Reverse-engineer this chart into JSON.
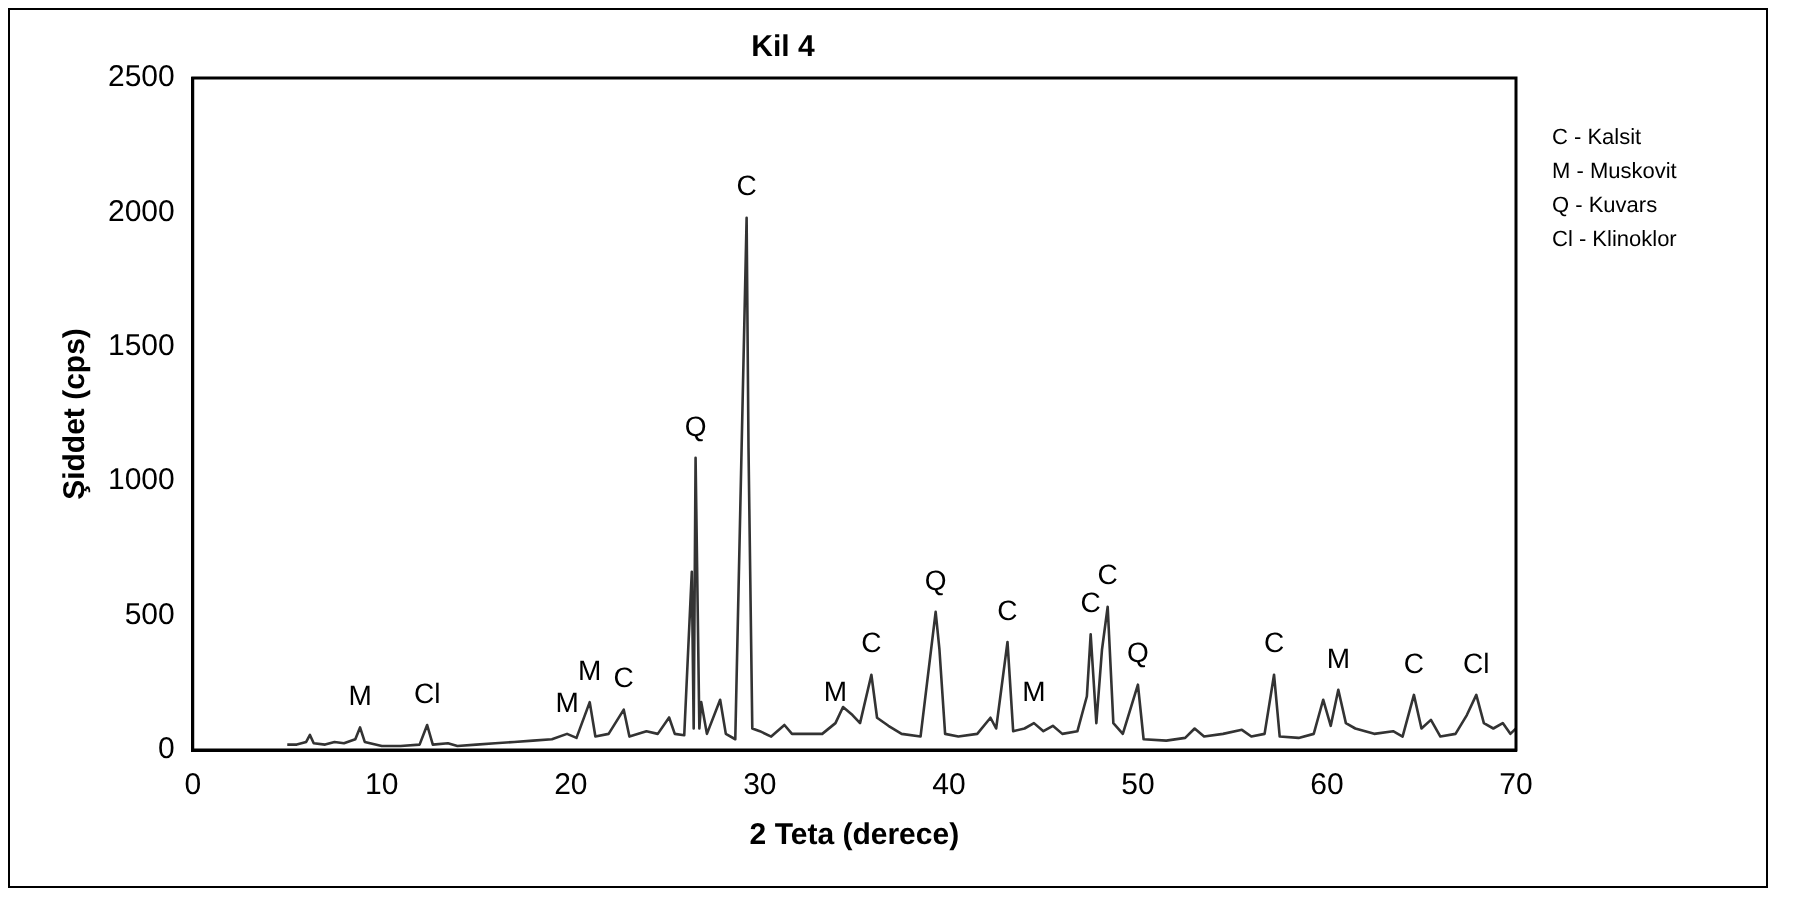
{
  "chart_data": {
    "type": "line",
    "title": "Kil 4",
    "xlabel": "2 Teta (derece)",
    "ylabel": "Şiddet (cps)",
    "xlim": [
      0,
      70
    ],
    "xticks": [
      0,
      10,
      20,
      30,
      40,
      50,
      60,
      70
    ],
    "ylim": [
      0,
      2500
    ],
    "yticks": [
      0,
      500,
      1000,
      1500,
      2000,
      2500
    ],
    "grid": false,
    "legend": false,
    "series": [
      {
        "color": "#333333",
        "x": [
          5,
          5.5,
          6,
          6.2,
          6.4,
          7,
          7.5,
          8,
          8.6,
          8.85,
          9.1,
          10,
          11,
          12,
          12.4,
          12.7,
          13.5,
          14,
          15,
          16,
          17,
          18,
          19,
          19.8,
          20.3,
          21,
          21.3,
          22,
          22.8,
          23.1,
          24,
          24.6,
          25.2,
          25.5,
          26,
          26.4,
          26.5,
          26.6,
          26.8,
          26.9,
          27.2,
          27.9,
          28.2,
          28.7,
          29.3,
          29.4,
          29.6,
          30,
          30.6,
          31.3,
          31.7,
          32.5,
          33.3,
          34,
          34.4,
          34.9,
          35.3,
          35.9,
          36.2,
          36.8,
          37.5,
          38.5,
          39.3,
          39.5,
          39.8,
          40.5,
          41.5,
          42.2,
          42.5,
          43.1,
          43.4,
          44,
          44.5,
          45,
          45.5,
          46,
          46.8,
          47.3,
          47.5,
          47.8,
          48.1,
          48.4,
          48.7,
          49.2,
          50,
          50.3,
          51.5,
          52.5,
          53,
          53.5,
          54.5,
          55.5,
          56,
          56.7,
          57.2,
          57.5,
          58.5,
          59.3,
          59.8,
          60.2,
          60.6,
          61,
          61.5,
          62.5,
          63.5,
          64,
          64.6,
          65,
          65.5,
          66,
          66.8,
          67.4,
          67.9,
          68.3,
          68.8,
          69.3,
          69.7,
          70
        ],
        "values": [
          20,
          20,
          30,
          56,
          25,
          20,
          30,
          25,
          40,
          84,
          30,
          15,
          15,
          20,
          93,
          20,
          25,
          15,
          20,
          25,
          30,
          35,
          40,
          60,
          45,
          178,
          50,
          60,
          150,
          50,
          70,
          60,
          121,
          60,
          55,
          663,
          80,
          1087,
          80,
          178,
          60,
          187,
          60,
          40,
          1980,
          1124,
          80,
          70,
          50,
          93,
          60,
          60,
          60,
          100,
          160,
          130,
          100,
          280,
          120,
          90,
          60,
          50,
          514,
          374,
          60,
          50,
          60,
          120,
          80,
          402,
          70,
          80,
          100,
          70,
          90,
          60,
          70,
          200,
          430,
          100,
          374,
          533,
          100,
          60,
          243,
          40,
          35,
          45,
          80,
          50,
          60,
          75,
          50,
          60,
          280,
          50,
          45,
          60,
          187,
          90,
          224,
          100,
          80,
          60,
          70,
          50,
          205,
          80,
          112,
          50,
          60,
          130,
          205,
          100,
          80,
          100,
          60,
          80
        ]
      }
    ],
    "annotations": [
      {
        "text": "M",
        "x": 8.85,
        "y": 84
      },
      {
        "text": "Cl",
        "x": 12.4,
        "y": 93
      },
      {
        "text": "M",
        "x": 19.8,
        "y": 60
      },
      {
        "text": "M",
        "x": 21,
        "y": 178
      },
      {
        "text": "C",
        "x": 22.8,
        "y": 150
      },
      {
        "text": "Q",
        "x": 26.6,
        "y": 1087
      },
      {
        "text": "C",
        "x": 29.3,
        "y": 1980
      },
      {
        "text": "M",
        "x": 34,
        "y": 100
      },
      {
        "text": "C",
        "x": 35.9,
        "y": 280
      },
      {
        "text": "Q",
        "x": 39.3,
        "y": 514
      },
      {
        "text": "C",
        "x": 43.1,
        "y": 402
      },
      {
        "text": "M",
        "x": 44.5,
        "y": 100
      },
      {
        "text": "C",
        "x": 47.5,
        "y": 430
      },
      {
        "text": "C",
        "x": 48.4,
        "y": 533
      },
      {
        "text": "Q",
        "x": 50,
        "y": 243
      },
      {
        "text": "C",
        "x": 57.2,
        "y": 280
      },
      {
        "text": "M",
        "x": 60.6,
        "y": 224
      },
      {
        "text": "C",
        "x": 64.6,
        "y": 205
      },
      {
        "text": "Cl",
        "x": 67.9,
        "y": 205
      },
      "C - Kalsit",
      "M - Muskovit",
      "Q - Kuvars",
      "Cl - Klinoklor"
    ]
  }
}
